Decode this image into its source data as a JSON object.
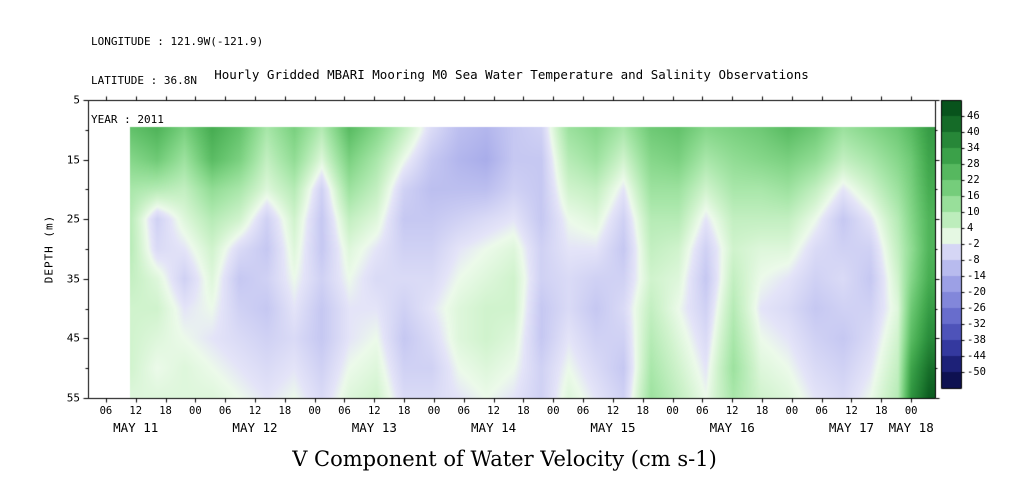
{
  "header": {
    "longitude": "LONGITUDE : 121.9W(-121.9)",
    "latitude": "LATITUDE : 36.8N",
    "year": "YEAR : 2011"
  },
  "title": "Hourly Gridded MBARI Mooring M0 Sea Water Temperature and Salinity Observations",
  "bottom_title": "V Component of Water Velocity (cm s-1)",
  "chart_data": {
    "type": "heatmap",
    "title": "V Component of Water Velocity (cm s-1)",
    "subtitle": "Hourly Gridded MBARI Mooring M0 Sea Water Temperature and Salinity Observations",
    "xlabel": "",
    "ylabel": "DEPTH (m)",
    "x_domain": [
      0.1,
      7.2
    ],
    "y_domain": [
      5,
      55
    ],
    "y_ticks": [
      5,
      15,
      25,
      35,
      45,
      55
    ],
    "y_minor_ticks": [
      10,
      20,
      30,
      40,
      50
    ],
    "x_ticks": [
      {
        "t": 0.25,
        "label": "06"
      },
      {
        "t": 0.5,
        "label": "12"
      },
      {
        "t": 0.75,
        "label": "18"
      },
      {
        "t": 1.0,
        "label": "00"
      },
      {
        "t": 1.25,
        "label": "06"
      },
      {
        "t": 1.5,
        "label": "12"
      },
      {
        "t": 1.75,
        "label": "18"
      },
      {
        "t": 2.0,
        "label": "00"
      },
      {
        "t": 2.25,
        "label": "06"
      },
      {
        "t": 2.5,
        "label": "12"
      },
      {
        "t": 2.75,
        "label": "18"
      },
      {
        "t": 3.0,
        "label": "00"
      },
      {
        "t": 3.25,
        "label": "06"
      },
      {
        "t": 3.5,
        "label": "12"
      },
      {
        "t": 3.75,
        "label": "18"
      },
      {
        "t": 4.0,
        "label": "00"
      },
      {
        "t": 4.25,
        "label": "06"
      },
      {
        "t": 4.5,
        "label": "12"
      },
      {
        "t": 4.75,
        "label": "18"
      },
      {
        "t": 5.0,
        "label": "00"
      },
      {
        "t": 5.25,
        "label": "06"
      },
      {
        "t": 5.5,
        "label": "12"
      },
      {
        "t": 5.75,
        "label": "18"
      },
      {
        "t": 6.0,
        "label": "00"
      },
      {
        "t": 6.25,
        "label": "06"
      },
      {
        "t": 6.5,
        "label": "12"
      },
      {
        "t": 6.75,
        "label": "18"
      },
      {
        "t": 7.0,
        "label": "00"
      }
    ],
    "day_labels": [
      {
        "t": 0.5,
        "label": "MAY 11"
      },
      {
        "t": 1.5,
        "label": "MAY 12"
      },
      {
        "t": 2.5,
        "label": "MAY 13"
      },
      {
        "t": 3.5,
        "label": "MAY 14"
      },
      {
        "t": 4.5,
        "label": "MAY 15"
      },
      {
        "t": 5.5,
        "label": "MAY 16"
      },
      {
        "t": 6.5,
        "label": "MAY 17"
      },
      {
        "t": 7.0,
        "label": "MAY 18"
      }
    ],
    "colorbar": {
      "ticks": [
        46,
        40,
        34,
        28,
        22,
        16,
        10,
        4,
        -2,
        -8,
        -14,
        -20,
        -26,
        -32,
        -38,
        -44,
        -50
      ],
      "min": -50,
      "max": 46,
      "stops": [
        {
          "v": 50,
          "c": "#07501a"
        },
        {
          "v": 46,
          "c": "#0c5c20"
        },
        {
          "v": 40,
          "c": "#1e7a30"
        },
        {
          "v": 34,
          "c": "#2f9440"
        },
        {
          "v": 28,
          "c": "#47ad52"
        },
        {
          "v": 22,
          "c": "#64c36c"
        },
        {
          "v": 16,
          "c": "#86d78a"
        },
        {
          "v": 10,
          "c": "#a9e7aa"
        },
        {
          "v": 4,
          "c": "#d0f3cd"
        },
        {
          "v": 0,
          "c": "#ecfaea"
        },
        {
          "v": -2,
          "c": "#e4e4f8"
        },
        {
          "v": -8,
          "c": "#c6c8f2"
        },
        {
          "v": -14,
          "c": "#a9adea"
        },
        {
          "v": -20,
          "c": "#8e93e0"
        },
        {
          "v": -26,
          "c": "#757ad4"
        },
        {
          "v": -32,
          "c": "#5b60c4"
        },
        {
          "v": -38,
          "c": "#4046ae"
        },
        {
          "v": -44,
          "c": "#272c90"
        },
        {
          "v": -50,
          "c": "#121560"
        },
        {
          "v": -54,
          "c": "#0c0f4c"
        }
      ]
    },
    "no_data_color": "#ffffff",
    "grid": {
      "depths": [
        10,
        15,
        20,
        25,
        30,
        35,
        40,
        45,
        50,
        55
      ],
      "data_top_depth": 9.6,
      "columns": [
        {
          "t": 0.45,
          "v": [
            22,
            16,
            10,
            8,
            8,
            6,
            4,
            4,
            4,
            2
          ]
        },
        {
          "t": 0.68,
          "v": [
            26,
            20,
            8,
            -6,
            -4,
            2,
            4,
            2,
            0,
            2
          ]
        },
        {
          "t": 0.91,
          "v": [
            18,
            12,
            6,
            2,
            -2,
            -6,
            -2,
            0,
            2,
            2
          ]
        },
        {
          "t": 1.14,
          "v": [
            28,
            24,
            14,
            8,
            4,
            2,
            0,
            -2,
            0,
            2
          ]
        },
        {
          "t": 1.37,
          "v": [
            22,
            18,
            10,
            4,
            -4,
            -8,
            -6,
            -4,
            -2,
            0
          ]
        },
        {
          "t": 1.6,
          "v": [
            10,
            6,
            2,
            -6,
            -8,
            -6,
            -8,
            -6,
            -4,
            -2
          ]
        },
        {
          "t": 1.83,
          "v": [
            18,
            14,
            8,
            4,
            2,
            0,
            -2,
            -4,
            -2,
            0
          ]
        },
        {
          "t": 2.06,
          "v": [
            8,
            2,
            -6,
            -8,
            -8,
            -6,
            -8,
            -8,
            -6,
            -4
          ]
        },
        {
          "t": 2.29,
          "v": [
            24,
            18,
            12,
            6,
            2,
            0,
            -2,
            -2,
            0,
            2
          ]
        },
        {
          "t": 2.52,
          "v": [
            16,
            10,
            6,
            2,
            -2,
            -4,
            -2,
            0,
            2,
            4
          ]
        },
        {
          "t": 2.75,
          "v": [
            6,
            0,
            -6,
            -8,
            -6,
            -4,
            -6,
            -8,
            -6,
            -4
          ]
        },
        {
          "t": 2.98,
          "v": [
            -4,
            -8,
            -10,
            -8,
            -6,
            -4,
            -2,
            -4,
            -6,
            -4
          ]
        },
        {
          "t": 3.21,
          "v": [
            -10,
            -12,
            -10,
            -6,
            -2,
            0,
            2,
            2,
            0,
            -2
          ]
        },
        {
          "t": 3.44,
          "v": [
            -12,
            -14,
            -10,
            -4,
            0,
            2,
            4,
            4,
            2,
            0
          ]
        },
        {
          "t": 3.67,
          "v": [
            -8,
            -8,
            -6,
            -2,
            2,
            4,
            4,
            2,
            0,
            -2
          ]
        },
        {
          "t": 3.9,
          "v": [
            -6,
            -8,
            -8,
            -8,
            -6,
            -6,
            -8,
            -8,
            -6,
            -6
          ]
        },
        {
          "t": 4.13,
          "v": [
            12,
            8,
            4,
            0,
            -2,
            -4,
            -4,
            -2,
            0,
            2
          ]
        },
        {
          "t": 4.36,
          "v": [
            16,
            12,
            6,
            2,
            -2,
            -6,
            -8,
            -6,
            -4,
            -2
          ]
        },
        {
          "t": 4.59,
          "v": [
            10,
            4,
            -2,
            -6,
            -8,
            -6,
            -4,
            -6,
            -8,
            -6
          ]
        },
        {
          "t": 4.82,
          "v": [
            20,
            16,
            12,
            8,
            6,
            4,
            6,
            8,
            10,
            12
          ]
        },
        {
          "t": 5.05,
          "v": [
            22,
            18,
            12,
            8,
            4,
            2,
            0,
            2,
            4,
            6
          ]
        },
        {
          "t": 5.28,
          "v": [
            16,
            10,
            4,
            -2,
            -6,
            -8,
            -6,
            -4,
            -2,
            0
          ]
        },
        {
          "t": 5.51,
          "v": [
            18,
            14,
            10,
            6,
            4,
            6,
            8,
            10,
            12,
            10
          ]
        },
        {
          "t": 5.74,
          "v": [
            20,
            16,
            10,
            6,
            2,
            0,
            -2,
            0,
            2,
            4
          ]
        },
        {
          "t": 5.97,
          "v": [
            24,
            18,
            12,
            6,
            2,
            -2,
            -4,
            -2,
            0,
            2
          ]
        },
        {
          "t": 6.2,
          "v": [
            20,
            14,
            6,
            0,
            -4,
            -6,
            -8,
            -6,
            -4,
            -2
          ]
        },
        {
          "t": 6.43,
          "v": [
            12,
            6,
            -2,
            -8,
            -6,
            -4,
            -6,
            -8,
            -6,
            -4
          ]
        },
        {
          "t": 6.66,
          "v": [
            16,
            10,
            4,
            -2,
            -6,
            -8,
            -6,
            -4,
            -2,
            0
          ]
        },
        {
          "t": 6.89,
          "v": [
            20,
            16,
            12,
            8,
            6,
            4,
            2,
            4,
            6,
            8
          ]
        },
        {
          "t": 7.0,
          "v": [
            24,
            20,
            18,
            16,
            14,
            16,
            20,
            24,
            30,
            34
          ]
        },
        {
          "t": 7.15,
          "v": [
            32,
            30,
            28,
            26,
            26,
            28,
            32,
            36,
            42,
            46
          ]
        }
      ]
    }
  }
}
